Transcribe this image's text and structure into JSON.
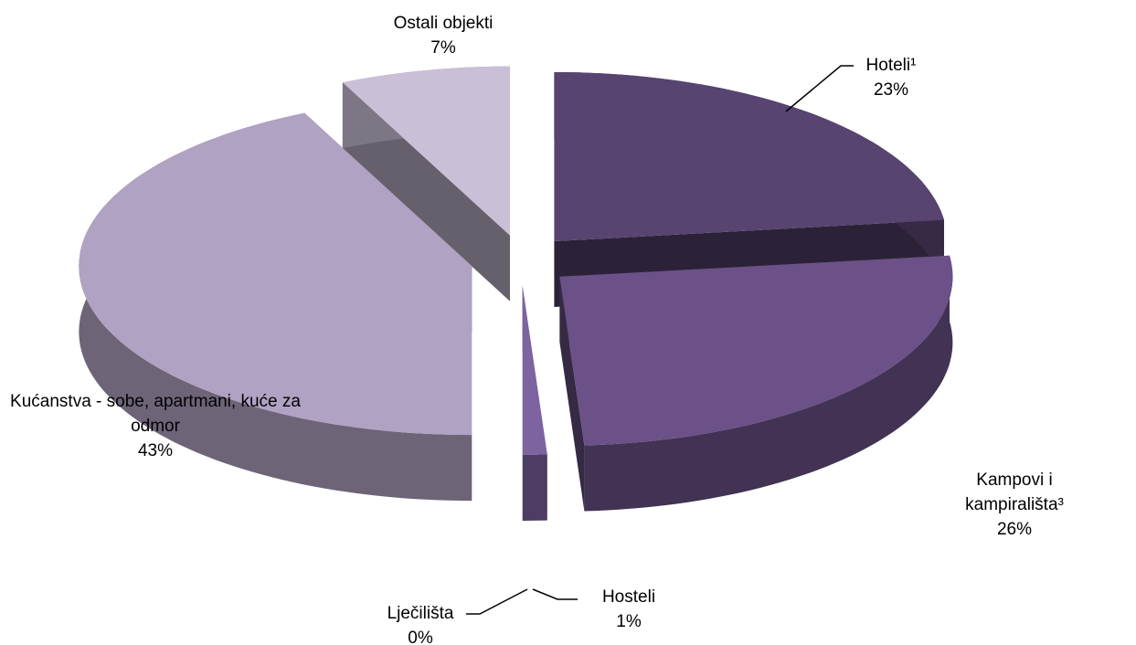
{
  "chart_data": {
    "type": "pie",
    "view": "3d-exploded",
    "categories": [
      "Hoteli¹",
      "Kampovi i kampirališta³",
      "Hosteli",
      "Lječilišta",
      "Kućanstva - sobe, apartmani, kuće za odmor",
      "Ostali objekti"
    ],
    "values": [
      23,
      26,
      1,
      0,
      43,
      7
    ],
    "value_labels": [
      "23%",
      "26%",
      "1%",
      "0%",
      "43%",
      "7%"
    ],
    "colors": [
      "#574470",
      "#6b5187",
      "#7d63a0",
      "#9a8ab5",
      "#b0a2c2",
      "#c9bfd6"
    ]
  }
}
